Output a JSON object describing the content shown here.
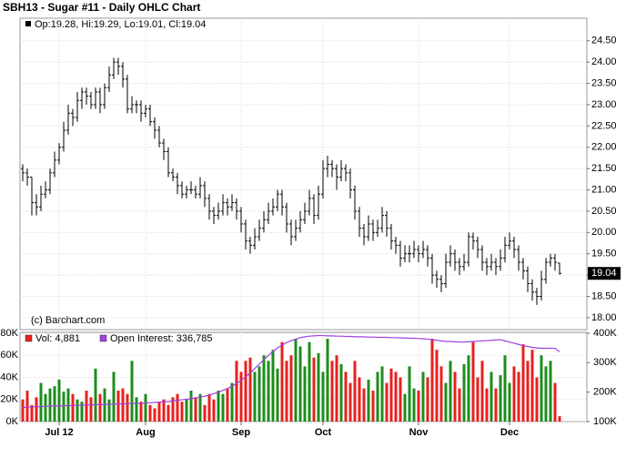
{
  "chart_data": [
    {
      "type": "ohlc",
      "title": "SBH13 - Sugar #11 - Daily OHLC Chart",
      "subtitle": "Op:19.28, Hi:19.29, Lo:19.01, Cl:19.04",
      "note": "(c) Barchart.com",
      "color": "#000000",
      "grid": true,
      "xlim": [
        -0.6,
        124
      ],
      "xticks": [
        {
          "value": 8,
          "label": "Jul 12"
        },
        {
          "value": 27,
          "label": "Aug"
        },
        {
          "value": 48,
          "label": "Sep"
        },
        {
          "value": 66,
          "label": "Oct"
        },
        {
          "value": 87,
          "label": "Nov"
        },
        {
          "value": 107,
          "label": "Dec"
        }
      ],
      "ylim": [
        17.72,
        25.03
      ],
      "yticks": [
        {
          "value": 18,
          "label": "18.00"
        },
        {
          "value": 18.5,
          "label": "18.50"
        },
        {
          "value": 19,
          "label": "19.00"
        },
        {
          "value": 19.5,
          "label": "19.50"
        },
        {
          "value": 20,
          "label": "20.00"
        },
        {
          "value": 20.5,
          "label": "20.50"
        },
        {
          "value": 21,
          "label": "21.00"
        },
        {
          "value": 21.5,
          "label": "21.50"
        },
        {
          "value": 22,
          "label": "22.00"
        },
        {
          "value": 22.5,
          "label": "22.50"
        },
        {
          "value": 23,
          "label": "23.00"
        },
        {
          "value": 23.5,
          "label": "23.50"
        },
        {
          "value": 24,
          "label": "24.00"
        },
        {
          "value": 24.5,
          "label": "24.50"
        }
      ],
      "ohlc": [
        [
          21.5,
          21.6,
          21.2,
          21.4
        ],
        [
          21.4,
          21.5,
          21.1,
          21.3
        ],
        [
          21.3,
          21.3,
          20.4,
          20.7
        ],
        [
          20.7,
          20.9,
          20.4,
          20.6
        ],
        [
          20.6,
          21.1,
          20.5,
          20.9
        ],
        [
          20.9,
          21.2,
          20.8,
          21.0
        ],
        [
          21.0,
          21.5,
          20.9,
          21.4
        ],
        [
          21.4,
          21.9,
          21.3,
          21.7
        ],
        [
          21.7,
          22.1,
          21.6,
          22.0
        ],
        [
          22.0,
          22.6,
          21.9,
          22.4
        ],
        [
          22.4,
          23.0,
          22.3,
          22.8
        ],
        [
          22.8,
          22.9,
          22.5,
          22.7
        ],
        [
          22.7,
          23.3,
          22.6,
          23.1
        ],
        [
          23.1,
          23.4,
          22.9,
          23.3
        ],
        [
          23.3,
          23.4,
          23.0,
          23.2
        ],
        [
          23.2,
          23.3,
          22.9,
          23.0
        ],
        [
          23.0,
          23.4,
          22.9,
          23.3
        ],
        [
          23.3,
          23.4,
          22.8,
          23.0
        ],
        [
          23.0,
          23.5,
          22.9,
          23.4
        ],
        [
          23.4,
          23.9,
          23.3,
          23.7
        ],
        [
          23.7,
          24.1,
          23.6,
          24.0
        ],
        [
          24.0,
          24.1,
          23.7,
          23.9
        ],
        [
          23.9,
          24.0,
          23.4,
          23.6
        ],
        [
          23.6,
          23.7,
          22.8,
          22.9
        ],
        [
          22.9,
          23.2,
          22.8,
          23.0
        ],
        [
          23.0,
          23.1,
          22.8,
          23.0
        ],
        [
          23.0,
          23.1,
          22.6,
          22.8
        ],
        [
          22.8,
          23.0,
          22.7,
          22.9
        ],
        [
          22.9,
          23.0,
          22.5,
          22.6
        ],
        [
          22.6,
          22.7,
          22.2,
          22.4
        ],
        [
          22.4,
          22.5,
          22.0,
          22.1
        ],
        [
          22.1,
          22.2,
          21.7,
          21.9
        ],
        [
          21.9,
          22.0,
          21.3,
          21.4
        ],
        [
          21.4,
          21.5,
          21.2,
          21.3
        ],
        [
          21.3,
          21.4,
          20.9,
          21.1
        ],
        [
          21.1,
          21.2,
          20.8,
          20.9
        ],
        [
          20.9,
          21.1,
          20.8,
          21.0
        ],
        [
          21.0,
          21.2,
          20.9,
          21.0
        ],
        [
          21.0,
          21.1,
          20.8,
          20.9
        ],
        [
          20.9,
          21.3,
          20.8,
          21.1
        ],
        [
          21.1,
          21.2,
          20.6,
          20.8
        ],
        [
          20.8,
          20.9,
          20.3,
          20.5
        ],
        [
          20.5,
          20.6,
          20.2,
          20.4
        ],
        [
          20.4,
          20.7,
          20.3,
          20.5
        ],
        [
          20.5,
          20.9,
          20.4,
          20.7
        ],
        [
          20.7,
          20.8,
          20.4,
          20.6
        ],
        [
          20.6,
          20.9,
          20.5,
          20.7
        ],
        [
          20.7,
          20.8,
          20.3,
          20.5
        ],
        [
          20.5,
          20.6,
          20.0,
          20.2
        ],
        [
          20.2,
          20.3,
          19.6,
          19.8
        ],
        [
          19.8,
          19.9,
          19.5,
          19.7
        ],
        [
          19.7,
          20.1,
          19.6,
          19.9
        ],
        [
          19.9,
          20.3,
          19.8,
          20.1
        ],
        [
          20.1,
          20.5,
          20.0,
          20.3
        ],
        [
          20.3,
          20.7,
          20.2,
          20.5
        ],
        [
          20.5,
          20.8,
          20.4,
          20.6
        ],
        [
          20.6,
          21.0,
          20.5,
          20.9
        ],
        [
          20.9,
          21.0,
          20.4,
          20.6
        ],
        [
          20.6,
          20.7,
          20.0,
          20.2
        ],
        [
          20.2,
          20.3,
          19.7,
          19.9
        ],
        [
          19.9,
          20.3,
          19.8,
          20.1
        ],
        [
          20.1,
          20.5,
          20.0,
          20.3
        ],
        [
          20.3,
          20.7,
          20.2,
          20.5
        ],
        [
          20.5,
          21.0,
          20.4,
          20.8
        ],
        [
          20.8,
          20.9,
          20.2,
          20.4
        ],
        [
          20.4,
          21.1,
          20.3,
          20.9
        ],
        [
          20.9,
          21.7,
          20.8,
          21.5
        ],
        [
          21.5,
          21.8,
          21.3,
          21.6
        ],
        [
          21.6,
          21.7,
          21.3,
          21.5
        ],
        [
          21.5,
          21.6,
          21.0,
          21.3
        ],
        [
          21.3,
          21.7,
          21.2,
          21.5
        ],
        [
          21.5,
          21.6,
          21.2,
          21.4
        ],
        [
          21.4,
          21.5,
          20.8,
          21.0
        ],
        [
          21.0,
          21.1,
          20.3,
          20.5
        ],
        [
          20.5,
          20.6,
          19.9,
          20.1
        ],
        [
          20.1,
          20.2,
          19.7,
          19.9
        ],
        [
          19.9,
          20.4,
          19.8,
          20.2
        ],
        [
          20.2,
          20.3,
          19.8,
          20.0
        ],
        [
          20.0,
          20.3,
          19.9,
          20.1
        ],
        [
          20.1,
          20.6,
          20.0,
          20.4
        ],
        [
          20.4,
          20.5,
          19.9,
          20.1
        ],
        [
          20.1,
          20.2,
          19.6,
          19.8
        ],
        [
          19.8,
          19.9,
          19.5,
          19.7
        ],
        [
          19.7,
          19.8,
          19.2,
          19.4
        ],
        [
          19.4,
          19.7,
          19.3,
          19.5
        ],
        [
          19.5,
          19.7,
          19.3,
          19.5
        ],
        [
          19.5,
          19.8,
          19.4,
          19.6
        ],
        [
          19.6,
          19.7,
          19.3,
          19.5
        ],
        [
          19.5,
          19.8,
          19.4,
          19.6
        ],
        [
          19.6,
          19.7,
          19.2,
          19.4
        ],
        [
          19.4,
          19.5,
          18.8,
          19.0
        ],
        [
          19.0,
          19.1,
          18.7,
          18.9
        ],
        [
          18.9,
          19.0,
          18.6,
          18.8
        ],
        [
          18.8,
          19.5,
          18.7,
          19.3
        ],
        [
          19.3,
          19.7,
          19.2,
          19.5
        ],
        [
          19.5,
          19.6,
          19.1,
          19.3
        ],
        [
          19.3,
          19.4,
          19.0,
          19.2
        ],
        [
          19.2,
          19.5,
          19.1,
          19.3
        ],
        [
          19.3,
          20.0,
          19.2,
          19.9
        ],
        [
          19.9,
          20.0,
          19.6,
          19.8
        ],
        [
          19.8,
          19.9,
          19.4,
          19.6
        ],
        [
          19.6,
          19.7,
          19.1,
          19.3
        ],
        [
          19.3,
          19.4,
          19.0,
          19.2
        ],
        [
          19.2,
          19.5,
          19.1,
          19.3
        ],
        [
          19.3,
          19.4,
          19.0,
          19.2
        ],
        [
          19.2,
          19.6,
          19.1,
          19.4
        ],
        [
          19.4,
          19.9,
          19.3,
          19.7
        ],
        [
          19.7,
          20.0,
          19.6,
          19.8
        ],
        [
          19.8,
          19.9,
          19.4,
          19.6
        ],
        [
          19.6,
          19.7,
          19.1,
          19.3
        ],
        [
          19.3,
          19.4,
          18.9,
          19.1
        ],
        [
          19.1,
          19.2,
          18.6,
          18.8
        ],
        [
          18.8,
          18.9,
          18.4,
          18.6
        ],
        [
          18.6,
          18.7,
          18.3,
          18.5
        ],
        [
          18.5,
          19.1,
          18.4,
          18.9
        ],
        [
          18.9,
          19.4,
          18.8,
          19.3
        ],
        [
          19.3,
          19.5,
          19.2,
          19.4
        ],
        [
          19.4,
          19.5,
          19.1,
          19.3
        ],
        [
          19.28,
          19.29,
          19.01,
          19.04
        ]
      ]
    },
    {
      "type": "bar",
      "grid": true,
      "up_color": "#1e8c1e",
      "down_color": "#e8201e",
      "ylim": [
        0,
        80800
      ],
      "yticks": [
        {
          "value": 0,
          "label": "0K"
        },
        {
          "value": 20000,
          "label": "20K"
        },
        {
          "value": 40000,
          "label": "40K"
        },
        {
          "value": 60000,
          "label": "60K"
        },
        {
          "value": 80000,
          "label": "80K"
        }
      ],
      "y2lim": [
        100000,
        403000
      ],
      "y2ticks": [
        {
          "value": 100000,
          "label": "100K"
        },
        {
          "value": 200000,
          "label": "200K"
        },
        {
          "value": 300000,
          "label": "300K"
        },
        {
          "value": 400000,
          "label": "400K"
        }
      ],
      "series": [
        {
          "name": "Vol: 4,881",
          "color": "#e8201e",
          "values": [
            20000,
            28000,
            15000,
            22000,
            35000,
            25000,
            30000,
            32000,
            38000,
            27000,
            30000,
            25000,
            20000,
            18000,
            28000,
            22000,
            48000,
            25000,
            30000,
            20000,
            45000,
            28000,
            30000,
            25000,
            55000,
            22000,
            18000,
            25000,
            15000,
            12000,
            18000,
            20000,
            15000,
            22000,
            25000,
            18000,
            20000,
            28000,
            22000,
            25000,
            15000,
            25000,
            20000,
            28000,
            25000,
            30000,
            35000,
            55000,
            45000,
            55000,
            58000,
            45000,
            50000,
            60000,
            55000,
            65000,
            48000,
            72000,
            55000,
            60000,
            75000,
            68000,
            50000,
            72000,
            58000,
            62000,
            45000,
            75000,
            55000,
            60000,
            52000,
            45000,
            35000,
            55000,
            40000,
            30000,
            38000,
            28000,
            45000,
            50000,
            35000,
            48000,
            45000,
            40000,
            25000,
            50000,
            30000,
            28000,
            45000,
            40000,
            75000,
            65000,
            50000,
            35000,
            55000,
            45000,
            30000,
            52000,
            60000,
            72000,
            40000,
            55000,
            30000,
            45000,
            30000,
            42000,
            60000,
            35000,
            50000,
            45000,
            70000,
            55000,
            65000,
            40000,
            60000,
            50000,
            55000,
            35000,
            4881
          ]
        },
        {
          "name": "Open Interest: 336,785",
          "color": "#a040e0",
          "axis": "y2",
          "values": [
            148000,
            149000,
            150000,
            150000,
            151000,
            152000,
            152000,
            153000,
            153000,
            154000,
            154000,
            155000,
            155000,
            156000,
            156000,
            157000,
            157000,
            158000,
            158000,
            159000,
            159000,
            160000,
            160000,
            161000,
            161000,
            162000,
            162000,
            163000,
            164000,
            165000,
            166000,
            167000,
            168000,
            170000,
            172000,
            174000,
            176000,
            178000,
            180000,
            183000,
            186000,
            190000,
            195000,
            200000,
            206000,
            212000,
            220000,
            230000,
            240000,
            252000,
            265000,
            280000,
            295000,
            310000,
            325000,
            338000,
            350000,
            360000,
            368000,
            375000,
            380000,
            385000,
            388000,
            390000,
            391000,
            392000,
            392000,
            391000,
            391000,
            390000,
            390000,
            389000,
            389000,
            388000,
            388000,
            388000,
            387000,
            387000,
            386000,
            386000,
            386000,
            385000,
            385000,
            384000,
            384000,
            383000,
            383000,
            382000,
            381000,
            380000,
            378000,
            376000,
            374000,
            372000,
            372000,
            371000,
            370000,
            370000,
            371000,
            372000,
            373000,
            374000,
            375000,
            376000,
            377000,
            378000,
            374000,
            370000,
            366000,
            362000,
            358000,
            355000,
            352000,
            350000,
            349000,
            349000,
            349000,
            349000,
            336785
          ]
        }
      ]
    }
  ]
}
